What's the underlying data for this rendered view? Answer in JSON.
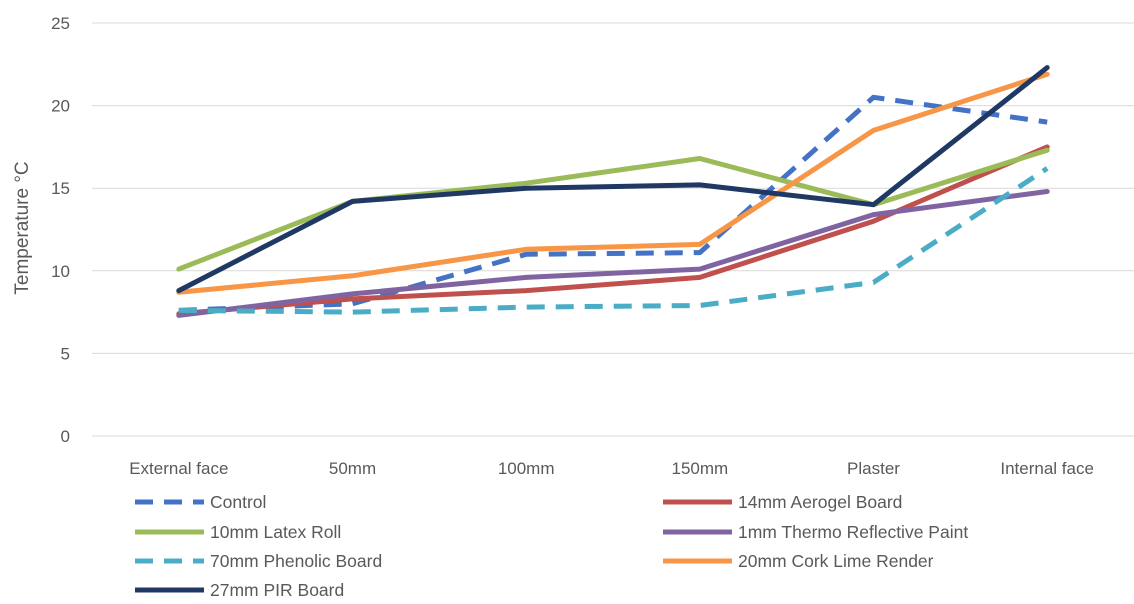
{
  "chart_data": {
    "type": "line",
    "title": "",
    "xlabel": "",
    "ylabel": "Temperature °C",
    "ylim": [
      0,
      25
    ],
    "yticks": [
      0,
      5,
      10,
      15,
      20,
      25
    ],
    "grid": "horizontal",
    "legend_position": "bottom",
    "categories": [
      "External face",
      "50mm",
      "100mm",
      "150mm",
      "Plaster",
      "Internal face"
    ],
    "series": [
      {
        "name": "Control",
        "color": "#4472c4",
        "dash": true,
        "values": [
          7.6,
          8.0,
          11.0,
          11.1,
          20.5,
          19.0
        ]
      },
      {
        "name": "14mm Aerogel Board",
        "color": "#c0504d",
        "dash": false,
        "values": [
          7.4,
          8.3,
          8.8,
          9.6,
          13.0,
          17.5
        ]
      },
      {
        "name": "10mm Latex Roll",
        "color": "#9bbb59",
        "dash": false,
        "values": [
          10.1,
          14.2,
          15.3,
          16.8,
          14.0,
          17.3
        ]
      },
      {
        "name": "1mm Thermo Reflective Paint",
        "color": "#8064a2",
        "dash": false,
        "values": [
          7.3,
          8.6,
          9.6,
          10.1,
          13.4,
          14.8
        ]
      },
      {
        "name": "70mm Phenolic Board",
        "color": "#4bacc6",
        "dash": true,
        "values": [
          7.6,
          7.5,
          7.8,
          7.9,
          9.3,
          16.2
        ]
      },
      {
        "name": "20mm Cork Lime Render",
        "color": "#f79646",
        "dash": false,
        "values": [
          8.7,
          9.7,
          11.3,
          11.6,
          18.5,
          21.9
        ]
      },
      {
        "name": "27mm PIR Board",
        "color": "#1f3864",
        "dash": false,
        "values": [
          8.8,
          14.2,
          15.0,
          15.2,
          14.0,
          22.3
        ]
      }
    ]
  }
}
